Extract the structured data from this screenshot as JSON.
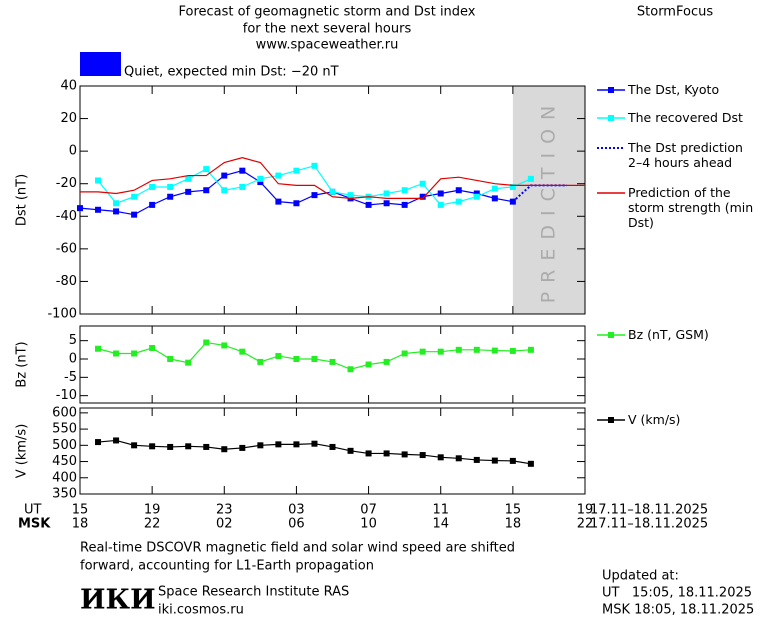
{
  "header": {
    "title_lines": [
      "Forecast of geomagnetic storm and Dst index",
      "for the next several hours",
      "www.spaceweather.ru"
    ],
    "brand": "StormFocus"
  },
  "status": {
    "text": "Quiet, expected min Dst: −20 nT",
    "color": "#0000ff"
  },
  "chart_data": [
    {
      "type": "line",
      "ylabel": "Dst (nT)",
      "xlim": [
        0,
        28
      ],
      "ylim": [
        -100,
        40
      ],
      "yticks": [
        -100,
        -80,
        -60,
        -40,
        -20,
        0,
        20,
        40
      ],
      "prediction_region": {
        "label": "PREDICTION",
        "xlim": [
          24,
          28
        ],
        "color": "#d9d9d9"
      },
      "series": [
        {
          "name": "The Dst, Kyoto",
          "color": "#0000ff",
          "marker": "square",
          "dash": "solid",
          "x": [
            0,
            1,
            2,
            3,
            4,
            5,
            6,
            7,
            8,
            9,
            10,
            11,
            12,
            13,
            14,
            15,
            16,
            17,
            18,
            19,
            20,
            21,
            22,
            23,
            24
          ],
          "values": [
            -35,
            -36,
            -37,
            -39,
            -33,
            -28,
            -25,
            -24,
            -15,
            -12,
            -19,
            -31,
            -32,
            -27,
            -25,
            -29,
            -33,
            -32,
            -33,
            -28,
            -26,
            -24,
            -26,
            -29,
            -31
          ]
        },
        {
          "name": "The recovered Dst",
          "color": "#00ffff",
          "marker": "square",
          "dash": "solid",
          "x": [
            1,
            2,
            3,
            4,
            5,
            6,
            7,
            8,
            9,
            10,
            11,
            12,
            13,
            14,
            15,
            16,
            17,
            18,
            19,
            20,
            21,
            22,
            23,
            24,
            25
          ],
          "values": [
            -18,
            -32,
            -28,
            -22,
            -22,
            -17,
            -11,
            -24,
            -22,
            -17,
            -15,
            -12,
            -9,
            -25,
            -27,
            -28,
            -26,
            -24,
            -20,
            -33,
            -31,
            -28,
            -23,
            -22,
            -17
          ]
        },
        {
          "name": "The Dst prediction 2–4 hours ahead",
          "color": "#0000ff",
          "marker": "none",
          "dash": "dotted",
          "x": [
            24,
            25,
            26,
            27
          ],
          "values": [
            -31,
            -21,
            -21,
            -21
          ]
        },
        {
          "name": "Prediction of the storm strength (min Dst)",
          "color": "#e00000",
          "marker": "none",
          "dash": "solid",
          "x": [
            0,
            1,
            2,
            3,
            4,
            5,
            6,
            7,
            8,
            9,
            10,
            11,
            12,
            13,
            14,
            15,
            16,
            17,
            18,
            19,
            20,
            21,
            22,
            23,
            24,
            25,
            26,
            27,
            28
          ],
          "values": [
            -25,
            -25,
            -26,
            -24,
            -18,
            -17,
            -15,
            -15,
            -7,
            -4,
            -7,
            -20,
            -21,
            -21,
            -28,
            -29,
            -28,
            -29,
            -29,
            -29,
            -17,
            -16,
            -18,
            -20,
            -21,
            -21,
            -21,
            -21,
            -21
          ]
        }
      ]
    },
    {
      "type": "line",
      "ylabel": "Bz (nT)",
      "xlim": [
        0,
        28
      ],
      "ylim": [
        -12,
        9
      ],
      "yticks": [
        -10,
        -5,
        0,
        5
      ],
      "series": [
        {
          "name": "Bz (nT, GSM)",
          "color": "#22ee22",
          "marker": "square",
          "dash": "solid",
          "x": [
            1,
            2,
            3,
            4,
            5,
            6,
            7,
            8,
            9,
            10,
            11,
            12,
            13,
            14,
            15,
            16,
            17,
            18,
            19,
            20,
            21,
            22,
            23,
            24,
            25
          ],
          "values": [
            2.8,
            1.5,
            1.5,
            3,
            0,
            -1,
            4.5,
            3.7,
            2,
            -0.8,
            0.8,
            0,
            0,
            -0.8,
            -2.8,
            -1.5,
            -0.8,
            1.5,
            2,
            2,
            2.5,
            2.5,
            2.3,
            2.2,
            2.5
          ]
        }
      ]
    },
    {
      "type": "line",
      "ylabel": "V (km/s)",
      "xlim": [
        0,
        28
      ],
      "ylim": [
        350,
        615
      ],
      "yticks": [
        350,
        400,
        450,
        500,
        550,
        600
      ],
      "xlabel": "UT",
      "xticks": [
        {
          "value": 0,
          "label": "15"
        },
        {
          "value": 4,
          "label": "19"
        },
        {
          "value": 8,
          "label": "23"
        },
        {
          "value": 12,
          "label": "03"
        },
        {
          "value": 16,
          "label": "07"
        },
        {
          "value": 20,
          "label": "11"
        },
        {
          "value": 24,
          "label": "15"
        },
        {
          "value": 28,
          "label": "19"
        }
      ],
      "msk_label": "MSK",
      "msk_ticks": [
        {
          "value": 0,
          "label": "18"
        },
        {
          "value": 4,
          "label": "22"
        },
        {
          "value": 8,
          "label": "02"
        },
        {
          "value": 12,
          "label": "06"
        },
        {
          "value": 16,
          "label": "10"
        },
        {
          "value": 20,
          "label": "14"
        },
        {
          "value": 24,
          "label": "18"
        },
        {
          "value": 28,
          "label": "22"
        }
      ],
      "date_range": "17.11–18.11.2025",
      "series": [
        {
          "name": "V (km/s)",
          "color": "#000000",
          "marker": "square",
          "dash": "solid",
          "x": [
            1,
            2,
            3,
            4,
            5,
            6,
            7,
            8,
            9,
            10,
            11,
            12,
            13,
            14,
            15,
            16,
            17,
            18,
            19,
            20,
            21,
            22,
            23,
            24,
            25
          ],
          "values": [
            510,
            515,
            500,
            497,
            495,
            497,
            495,
            488,
            492,
            500,
            503,
            503,
            505,
            495,
            483,
            475,
            475,
            472,
            470,
            463,
            460,
            455,
            453,
            452,
            443
          ]
        }
      ]
    }
  ],
  "footer": {
    "note_lines": [
      "Real-time DSCOVR magnetic field and solar wind speed are shifted",
      "forward, accounting for L1-Earth propagation"
    ],
    "logo": "ИКИ",
    "institute": "Space Research Institute RAS",
    "website": "iki.cosmos.ru",
    "updated_title": "Updated at:",
    "updated_ut": "UT   15:05, 18.11.2025",
    "updated_msk": "MSK 18:05, 18.11.2025"
  }
}
